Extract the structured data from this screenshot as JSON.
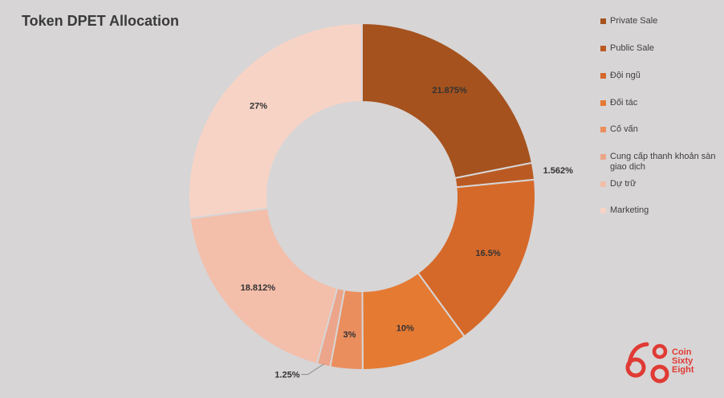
{
  "chart_data": {
    "type": "pie",
    "title": "Token DPET Allocation",
    "legend_position": "right",
    "categories": [
      "Private Sale",
      "Public Sale",
      "Đội ngũ",
      "Đối tác",
      "Cố vấn",
      "Cung cấp thanh khoản sàn giao dịch",
      "Dự trữ",
      "Marketing"
    ],
    "values": [
      21.875,
      1.562,
      16.5,
      10,
      3,
      1.25,
      18.812,
      27
    ],
    "labels": [
      "21.875%",
      "1.562%",
      "16.5%",
      "10%",
      "3%",
      "1.25%",
      "18.812%",
      "27%"
    ],
    "colors": [
      "#a5521e",
      "#ba5a22",
      "#d5692a",
      "#e57a33",
      "#ea8e5e",
      "#eca58a",
      "#f3beaa",
      "#f7d3c6"
    ]
  },
  "logo": {
    "digits": "68",
    "line1": "Coin",
    "line2": "Sixty",
    "line3": "Eight",
    "color": "#e03a34"
  }
}
